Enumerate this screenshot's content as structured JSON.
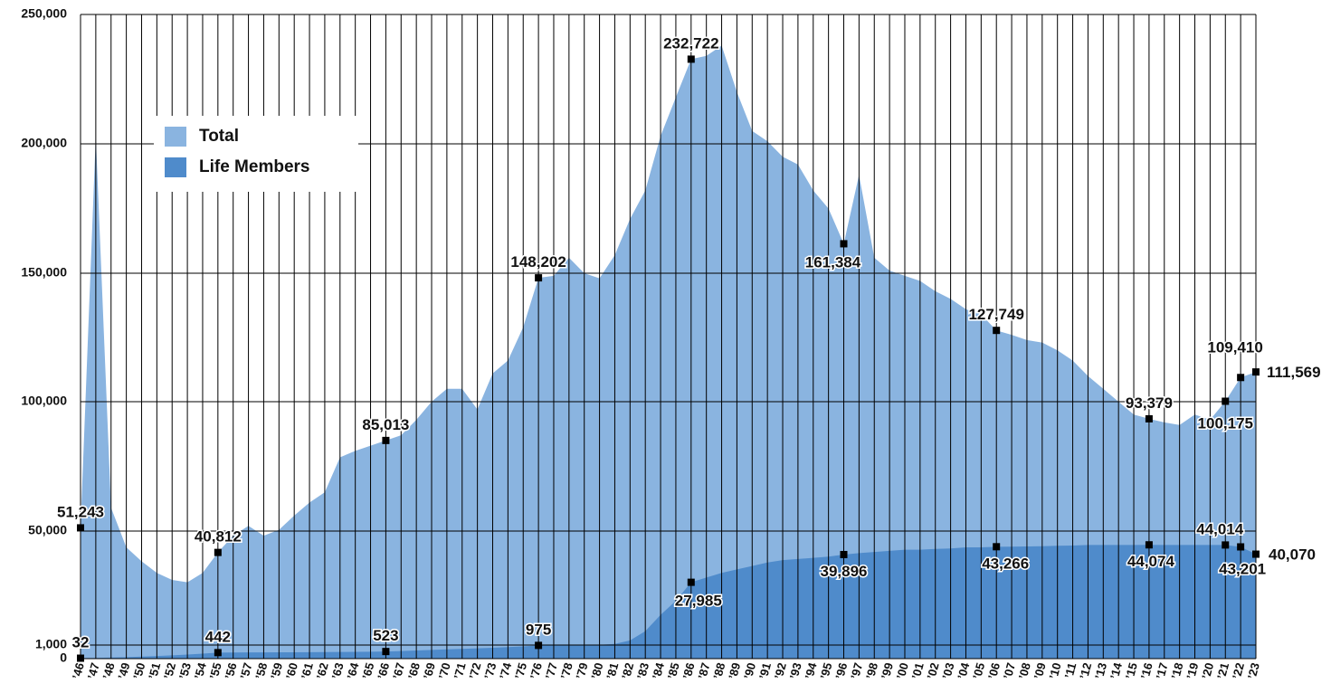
{
  "chart_data": {
    "type": "area",
    "categories": [
      "’46",
      "’47",
      "’48",
      "’49",
      "’50",
      "’51",
      "’52",
      "’53",
      "’54",
      "’55",
      "’56",
      "’57",
      "’58",
      "’59",
      "’60",
      "’61",
      "’62",
      "’63",
      "’64",
      "’65",
      "’66",
      "’67",
      "’68",
      "’69",
      "’70",
      "’71",
      "’72",
      "’73",
      "’74",
      "’75",
      "’76",
      "’77",
      "’78",
      "’79",
      "’80",
      "’81",
      "’82",
      "’83",
      "’84",
      "’85",
      "’86",
      "’87",
      "’88",
      "’89",
      "’90",
      "’91",
      "’92",
      "’93",
      "’94",
      "’95",
      "’96",
      "’97",
      "’98",
      "’99",
      "’00",
      "’01",
      "’02",
      "’03",
      "’04",
      "’05",
      "’06",
      "’07",
      "’08",
      "’09",
      "’10",
      "’11",
      "’12",
      "’13",
      "’14",
      "’15",
      "’16",
      "’17",
      "’18",
      "’19",
      "’20",
      "’21",
      "’22",
      "’23"
    ],
    "series": [
      {
        "name": "Total",
        "color": "#8ab4e0",
        "values": [
          51243,
          203000,
          59000,
          43000,
          37000,
          32000,
          29000,
          28000,
          32000,
          40812,
          48000,
          52000,
          48000,
          50500,
          56000,
          61000,
          65000,
          78500,
          81000,
          83000,
          85013,
          87000,
          93000,
          100000,
          105000,
          105000,
          97000,
          111000,
          116000,
          129000,
          148202,
          149000,
          156000,
          150000,
          148000,
          157000,
          171000,
          182000,
          203000,
          218000,
          232722,
          234000,
          238000,
          220000,
          205000,
          201000,
          195000,
          192000,
          182000,
          175000,
          161384,
          188000,
          156000,
          151000,
          149000,
          147000,
          143000,
          140000,
          136000,
          134000,
          127749,
          126000,
          124000,
          123000,
          120000,
          116000,
          110000,
          105000,
          100000,
          95000,
          93379,
          92000,
          91000,
          95000,
          93000,
          100175,
          109410,
          111569
        ],
        "value_labels": [
          "51,243",
          null,
          null,
          null,
          null,
          null,
          null,
          null,
          null,
          "40,812",
          null,
          null,
          null,
          null,
          null,
          null,
          null,
          null,
          null,
          null,
          "85,013",
          null,
          null,
          null,
          null,
          null,
          null,
          null,
          null,
          null,
          "148,202",
          null,
          null,
          null,
          null,
          null,
          null,
          null,
          null,
          null,
          "232,722",
          null,
          null,
          null,
          null,
          null,
          null,
          null,
          null,
          null,
          "161,384",
          null,
          null,
          null,
          null,
          null,
          null,
          null,
          null,
          null,
          "127,749",
          null,
          null,
          null,
          null,
          null,
          null,
          null,
          null,
          null,
          "93,379",
          null,
          null,
          null,
          null,
          "100,175",
          "109,410",
          "111,569"
        ]
      },
      {
        "name": "Life Members",
        "color": "#4f8bcb",
        "values": [
          32,
          50,
          80,
          110,
          150,
          190,
          240,
          300,
          370,
          442,
          450,
          455,
          460,
          465,
          470,
          475,
          480,
          490,
          500,
          510,
          523,
          560,
          600,
          640,
          680,
          720,
          760,
          800,
          850,
          900,
          975,
          1000,
          1000,
          1050,
          1100,
          1500,
          3000,
          7000,
          14000,
          20000,
          27985,
          30000,
          32000,
          33500,
          35000,
          36500,
          37500,
          38000,
          38500,
          39000,
          39896,
          40500,
          41000,
          41500,
          42000,
          42000,
          42300,
          42500,
          43000,
          43000,
          43266,
          43300,
          43400,
          43500,
          43700,
          43800,
          44000,
          44000,
          44000,
          44000,
          44074,
          44000,
          44000,
          44000,
          44000,
          44014,
          43201,
          40070
        ],
        "value_labels": [
          "32",
          null,
          null,
          null,
          null,
          null,
          null,
          null,
          null,
          "442",
          null,
          null,
          null,
          null,
          null,
          null,
          null,
          null,
          null,
          null,
          "523",
          null,
          null,
          null,
          null,
          null,
          null,
          null,
          null,
          null,
          "975",
          null,
          null,
          null,
          null,
          null,
          null,
          null,
          null,
          null,
          "27,985",
          null,
          null,
          null,
          null,
          null,
          null,
          null,
          null,
          null,
          "39,896",
          null,
          null,
          null,
          null,
          null,
          null,
          null,
          null,
          null,
          "43,266",
          null,
          null,
          null,
          null,
          null,
          null,
          null,
          null,
          null,
          "44,074",
          null,
          null,
          null,
          null,
          "44,014",
          "43,201",
          "40,070"
        ]
      }
    ],
    "ylim": [
      0,
      250000
    ],
    "yticks": [
      0,
      {
        "value": 1000,
        "label": "1,000"
      },
      {
        "value": 50000,
        "label": "50,000"
      },
      {
        "value": 100000,
        "label": "100,000"
      },
      {
        "value": 150000,
        "label": "150,000"
      },
      {
        "value": 200000,
        "label": "200,000"
      },
      {
        "value": 250000,
        "label": "250,000"
      }
    ],
    "grid": true,
    "legend": "upper left"
  }
}
